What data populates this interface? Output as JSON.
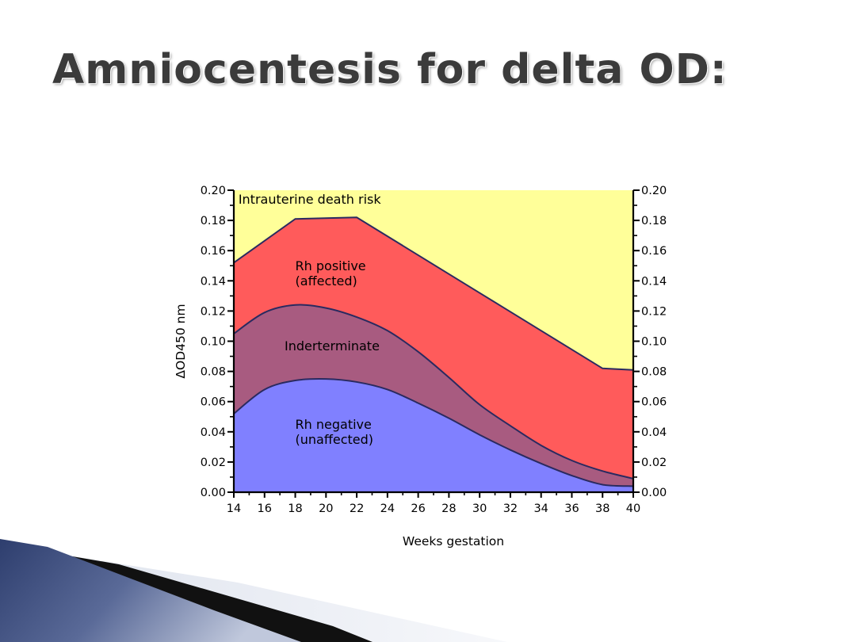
{
  "slide": {
    "title": "Amniocentesis for delta OD:"
  },
  "colors": {
    "zone_death": "#ffff99",
    "zone_positive": "#ff5b5b",
    "zone_indeterminate": "#a85b80",
    "zone_negative": "#8080ff",
    "boundary_line": "#2a2a60"
  },
  "chart_data": {
    "type": "area",
    "xlabel": "Weeks gestation",
    "ylabel": "ΔOD450 nm",
    "xlim": [
      14,
      40
    ],
    "ylim": [
      0,
      0.2
    ],
    "x_ticks": [
      "14",
      "16",
      "18",
      "20",
      "22",
      "24",
      "26",
      "28",
      "30",
      "32",
      "34",
      "36",
      "38",
      "40"
    ],
    "y_ticks": [
      "0.00",
      "0.02",
      "0.04",
      "0.06",
      "0.08",
      "0.10",
      "0.12",
      "0.14",
      "0.16",
      "0.18",
      "0.20"
    ],
    "grid": false,
    "boundaries": [
      {
        "id": "upper",
        "points": [
          [
            14,
            0.152
          ],
          [
            18,
            0.181
          ],
          [
            22,
            0.182
          ],
          [
            26,
            0.157
          ],
          [
            30,
            0.132
          ],
          [
            34,
            0.107
          ],
          [
            38,
            0.082
          ],
          [
            40,
            0.081
          ]
        ]
      },
      {
        "id": "middle",
        "points": [
          [
            14,
            0.105
          ],
          [
            16,
            0.119
          ],
          [
            18,
            0.124
          ],
          [
            20,
            0.122
          ],
          [
            22,
            0.116
          ],
          [
            24,
            0.107
          ],
          [
            26,
            0.093
          ],
          [
            28,
            0.076
          ],
          [
            30,
            0.058
          ],
          [
            32,
            0.044
          ],
          [
            34,
            0.031
          ],
          [
            36,
            0.021
          ],
          [
            38,
            0.014
          ],
          [
            40,
            0.009
          ]
        ]
      },
      {
        "id": "lower",
        "points": [
          [
            14,
            0.052
          ],
          [
            16,
            0.068
          ],
          [
            18,
            0.074
          ],
          [
            20,
            0.075
          ],
          [
            22,
            0.073
          ],
          [
            24,
            0.068
          ],
          [
            26,
            0.059
          ],
          [
            28,
            0.049
          ],
          [
            30,
            0.038
          ],
          [
            32,
            0.028
          ],
          [
            34,
            0.019
          ],
          [
            36,
            0.011
          ],
          [
            38,
            0.005
          ],
          [
            40,
            0.004
          ]
        ]
      }
    ],
    "regions": [
      {
        "name": "Intrauterine death risk",
        "lines": [
          "Intrauterine death risk"
        ],
        "label_at": [
          14.3,
          0.191
        ],
        "color_key": "zone_death"
      },
      {
        "name": "Rh positive (affected)",
        "lines": [
          "Rh positive",
          "(affected)"
        ],
        "label_at": [
          18,
          0.147
        ],
        "color_key": "zone_positive"
      },
      {
        "name": "Inderterminate",
        "lines": [
          "Inderterminate"
        ],
        "label_at": [
          17.3,
          0.094
        ],
        "color_key": "zone_indeterminate"
      },
      {
        "name": "Rh negative (unaffected)",
        "lines": [
          "Rh negative",
          "(unaffected)"
        ],
        "label_at": [
          18,
          0.042
        ],
        "color_key": "zone_negative"
      }
    ]
  }
}
